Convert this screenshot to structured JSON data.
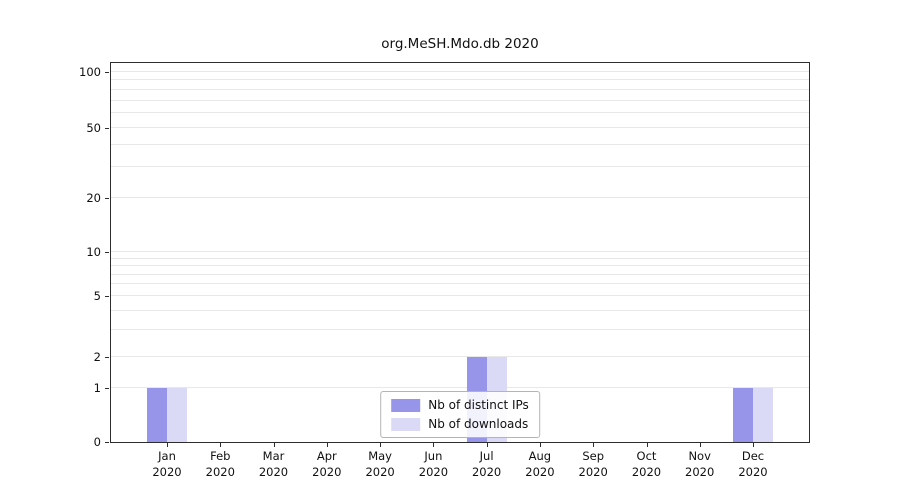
{
  "chart_data": {
    "type": "bar",
    "title": "org.MeSH.Mdo.db 2020",
    "categories": [
      "Jan",
      "Feb",
      "Mar",
      "Apr",
      "May",
      "Jun",
      "Jul",
      "Aug",
      "Sep",
      "Oct",
      "Nov",
      "Dec"
    ],
    "category_sublabel": "2020",
    "series": [
      {
        "name": "Nb of distinct IPs",
        "color": "#9695ea",
        "values": [
          1,
          0,
          0,
          0,
          0,
          0,
          2,
          0,
          0,
          0,
          0,
          1
        ]
      },
      {
        "name": "Nb of downloads",
        "color": "#dbdaf6",
        "values": [
          1,
          0,
          0,
          0,
          0,
          0,
          2,
          0,
          0,
          0,
          0,
          1
        ]
      }
    ],
    "yticks": [
      0,
      1,
      2,
      5,
      10,
      20,
      50,
      100
    ],
    "yscale": "log-like",
    "ylim": [
      0,
      110
    ],
    "grid": true,
    "grid_minor_values": [
      3,
      4,
      6,
      7,
      8,
      9,
      30,
      40,
      60,
      70,
      80,
      90
    ],
    "legend_position": "bottom-center"
  }
}
